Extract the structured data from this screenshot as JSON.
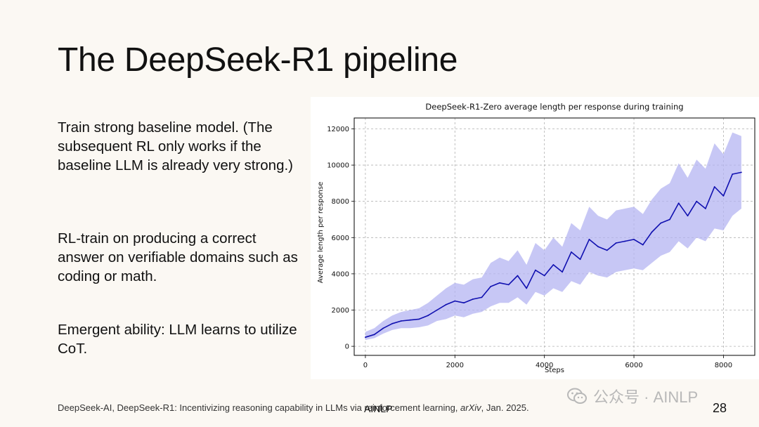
{
  "slide": {
    "title": "The DeepSeek-R1 pipeline",
    "bullets": [
      "Train strong baseline model. (The subsequent RL only works if the baseline LLM is already very strong.)",
      "RL-train on producing a correct answer on verifiable domains such as coding or math.",
      "Emergent ability: LLM learns to utilize CoT."
    ],
    "citation_prefix": "DeepSeek-AI, DeepSeek-R1: Incentivizing reasoning capability in LLMs via reinforcement learning, ",
    "citation_venue": "arXiv",
    "citation_suffix": ", Jan. 2025.",
    "footer_org": "AINLP",
    "page_number": "28",
    "watermark_text": "公众号 · AINLP"
  },
  "colors": {
    "background": "#fbf8f3",
    "line": "#1010b0",
    "band": "#b4b4f2",
    "grid": "#b0b0b0"
  },
  "chart_data": {
    "type": "line",
    "title": "DeepSeek-R1-Zero average length per response during training",
    "xlabel": "Steps",
    "ylabel": "Average length per response",
    "xlim": [
      -250,
      8700
    ],
    "ylim": [
      -500,
      12600
    ],
    "xticks": [
      0,
      2000,
      4000,
      6000,
      8000
    ],
    "yticks": [
      0,
      2000,
      4000,
      6000,
      8000,
      10000,
      12000
    ],
    "grid": true,
    "series": [
      {
        "x": [
          0,
          200,
          400,
          600,
          800,
          1000,
          1200,
          1400,
          1600,
          1800,
          2000,
          2200,
          2400,
          2600,
          2800,
          3000,
          3200,
          3400,
          3600,
          3800,
          4000,
          4200,
          4400,
          4600,
          4800,
          5000,
          5200,
          5400,
          5600,
          5800,
          6000,
          6200,
          6400,
          6600,
          6800,
          7000,
          7200,
          7400,
          7600,
          7800,
          8000,
          8200,
          8400
        ],
        "y": [
          500,
          650,
          1000,
          1250,
          1400,
          1450,
          1500,
          1700,
          2000,
          2300,
          2500,
          2400,
          2600,
          2700,
          3300,
          3500,
          3400,
          3900,
          3200,
          4200,
          3900,
          4500,
          4100,
          5200,
          4800,
          5900,
          5500,
          5300,
          5700,
          5800,
          5900,
          5600,
          6300,
          6800,
          7000,
          7900,
          7200,
          8000,
          7600,
          8800,
          8300,
          9500,
          9600
        ],
        "band_low": [
          350,
          450,
          700,
          900,
          1000,
          1000,
          1050,
          1150,
          1400,
          1500,
          1700,
          1600,
          1800,
          1900,
          2200,
          2400,
          2400,
          2700,
          2300,
          3000,
          2800,
          3200,
          3000,
          3600,
          3400,
          4100,
          3900,
          3800,
          4100,
          4200,
          4300,
          4200,
          4600,
          5000,
          5200,
          5800,
          5400,
          6000,
          5800,
          6500,
          6400,
          7200,
          7600
        ],
        "band_high": [
          800,
          1000,
          1400,
          1700,
          1900,
          2000,
          2100,
          2400,
          2800,
          3200,
          3500,
          3400,
          3700,
          3800,
          4600,
          4900,
          4700,
          5300,
          4500,
          5700,
          5300,
          6000,
          5500,
          6800,
          6400,
          7700,
          7200,
          7000,
          7500,
          7600,
          7700,
          7300,
          8100,
          8700,
          9000,
          10100,
          9300,
          10300,
          9800,
          11200,
          10600,
          11800,
          11600
        ]
      }
    ]
  }
}
